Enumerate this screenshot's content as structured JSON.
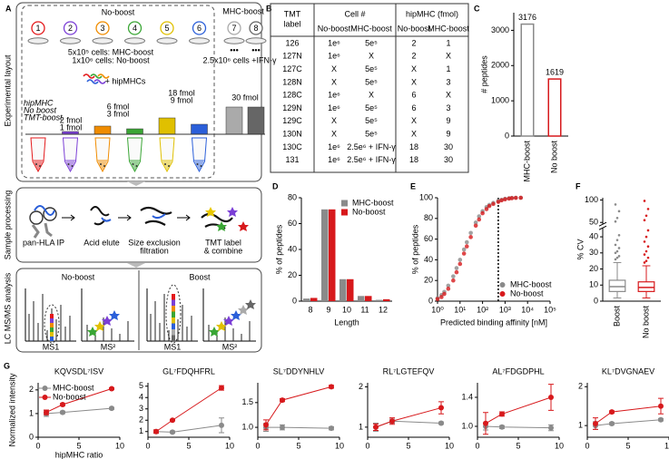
{
  "panel_labels": [
    "A",
    "B",
    "C",
    "D",
    "E",
    "F",
    "G"
  ],
  "layout": {
    "section_labels": [
      "Experimental layout",
      "Sample processing",
      "LC MS/MS analysis"
    ],
    "no_boost": "No-boost",
    "mhc_boost": "MHC-boost",
    "channels": [
      "1",
      "2",
      "3",
      "4",
      "5",
      "6",
      "7",
      "8"
    ],
    "cells_note": [
      "5x10⁵ cells: MHC-boost",
      "1x10⁶ cells: No-boost"
    ],
    "hipmhc_add": "+ hipMHCs",
    "dots": "•••",
    "ifn_note": "2.5x10⁶ cells +IFN-γ",
    "legend_lines": [
      "hipMHC",
      "No boost",
      "TMT-boost"
    ],
    "amounts": [
      "2 fmol",
      "1 fmol",
      "6 fmol",
      "3 fmol",
      "18 fmol",
      "9 fmol",
      "30 fmol"
    ],
    "steps": [
      [
        "pan-HLA IP"
      ],
      [
        "Acid elute"
      ],
      [
        "Size exclusion",
        "filtration"
      ],
      [
        "TMT label",
        "& combine"
      ]
    ],
    "ms_panels": [
      {
        "title": "No-boost",
        "ms1": "MS1",
        "ms2": "MS²"
      },
      {
        "title": "Boost",
        "ms1": "MS1",
        "ms2": "MS²"
      }
    ]
  },
  "table": {
    "header": [
      [
        "TMT",
        "label"
      ],
      [
        "Cell #"
      ],
      [
        "hipMHC (fmol)"
      ]
    ],
    "subheader": [
      "No-boost",
      "MHC-boost",
      "No-boost",
      "MHC-boost"
    ],
    "rows": [
      [
        "126",
        "1e⁶",
        "5e⁵",
        "2",
        "1"
      ],
      [
        "127N",
        "1e⁶",
        "X",
        "2",
        "X"
      ],
      [
        "127C",
        "X",
        "5e⁵",
        "X",
        "1"
      ],
      [
        "128N",
        "X",
        "5e⁵",
        "X",
        "3"
      ],
      [
        "128C",
        "1e⁶",
        "X",
        "6",
        "X"
      ],
      [
        "129N",
        "1e⁶",
        "5e⁵",
        "6",
        "3"
      ],
      [
        "129C",
        "X",
        "5e⁵",
        "X",
        "9"
      ],
      [
        "130N",
        "X",
        "5e⁵",
        "X",
        "9"
      ],
      [
        "130C",
        "1e⁶",
        "2.5e⁶ + IFN-γ",
        "18",
        "30"
      ],
      [
        "131",
        "1e⁶",
        "2.5e⁶ + IFN-γ",
        "18",
        "30"
      ]
    ]
  },
  "chart_data": [
    {
      "type": "bar",
      "ylabel": "# peptides",
      "categories": [
        "MHC-boost",
        "No boost"
      ],
      "values": [
        3176,
        1619
      ],
      "colors": [
        "#8a8a8a",
        "#d7191c"
      ],
      "ylim": [
        0,
        3500
      ],
      "yticks": [
        0,
        1000,
        2000,
        3000
      ],
      "xtick_rotation": 90
    },
    {
      "type": "bar",
      "ylabel": "% of peptides",
      "xlabel": "Length",
      "categories": [
        "8",
        "9",
        "10",
        "11",
        "12"
      ],
      "series": [
        {
          "name": "MHC-boost",
          "color": "#8a8a8a",
          "values": [
            2,
            71,
            17,
            4,
            1
          ]
        },
        {
          "name": "No-boost",
          "color": "#d7191c",
          "values": [
            2.5,
            71,
            17,
            4,
            1.5
          ]
        }
      ],
      "ylim": [
        0,
        80
      ],
      "yticks": [
        0,
        20,
        40,
        60,
        80
      ],
      "legend": "top-right"
    },
    {
      "type": "scatter",
      "ylabel": "% of peptides",
      "xlabel": "Predicted binding affinity [nM]",
      "xscale": "log",
      "x": [
        1,
        1.5,
        2,
        3,
        5,
        7,
        10,
        15,
        20,
        30,
        50,
        70,
        100,
        150,
        200,
        300,
        500,
        700,
        1000,
        1500,
        2000,
        3000,
        5000
      ],
      "series": [
        {
          "name": "MHC-boost",
          "color": "#8a8a8a",
          "values": [
            3,
            6,
            9,
            15,
            24,
            32,
            40,
            50,
            57,
            66,
            76,
            82,
            87,
            91,
            93,
            95,
            97,
            98,
            99,
            99.5,
            99.8,
            100,
            100
          ]
        },
        {
          "name": "No-boost",
          "color": "#d7191c",
          "values": [
            2,
            4,
            7,
            12,
            20,
            28,
            36,
            46,
            53,
            62,
            73,
            79,
            85,
            89,
            92,
            94,
            96,
            97.5,
            98.5,
            99.2,
            99.6,
            99.9,
            100
          ]
        }
      ],
      "xlim": [
        1,
        100000
      ],
      "xticks": [
        {
          "value": 1,
          "label": "10⁰"
        },
        {
          "value": 10,
          "label": "10¹"
        },
        {
          "value": 100,
          "label": "10²"
        },
        {
          "value": 1000,
          "label": "10³"
        },
        {
          "value": 10000,
          "label": "10⁴"
        },
        {
          "value": 100000,
          "label": "10⁵"
        }
      ],
      "ylim": [
        0,
        100
      ],
      "yticks": [
        0,
        20,
        40,
        60,
        80,
        100
      ],
      "threshold": 500,
      "legend": "bottom-right"
    },
    {
      "type": "box",
      "ylabel": "% CV",
      "categories": [
        "Boost",
        "No boost"
      ],
      "colors": [
        "#8a8a8a",
        "#d7191c"
      ],
      "whisker_low": [
        2,
        2
      ],
      "q1": [
        6,
        6
      ],
      "median": [
        9,
        8.5
      ],
      "q3": [
        13,
        12
      ],
      "whisker_high": [
        24,
        22
      ],
      "outliers": [
        [
          26,
          27,
          28,
          30,
          31,
          33,
          35,
          38,
          41,
          52,
          60,
          75,
          90
        ],
        [
          24,
          25,
          27,
          29,
          31,
          34,
          37,
          40,
          44,
          55,
          65,
          80,
          98
        ]
      ],
      "ylim": [
        0,
        105
      ],
      "axis_break": [
        45,
        48
      ],
      "yticks": [
        0,
        10,
        20,
        30,
        40,
        50,
        100
      ],
      "xtick_rotation": 90
    },
    {
      "type": "line",
      "title": "KQVSDL⁷ISV",
      "ylabel": "Normalized intensity",
      "xlabel": "hipMHC ratio",
      "x": [
        1,
        3,
        9
      ],
      "series": [
        {
          "name": "MHC-boost",
          "color": "#8a8a8a",
          "values": [
            1.0,
            1.05,
            1.22
          ],
          "errors": [
            0.12,
            0.05,
            0.04
          ]
        },
        {
          "name": "No-boost",
          "color": "#d7191c",
          "values": [
            1.05,
            1.38,
            2.05
          ],
          "errors": [
            0.1,
            0.05,
            0.04
          ]
        }
      ],
      "xlim": [
        0,
        10
      ],
      "xticks": [
        0,
        5,
        10
      ],
      "ylim": [
        0,
        2.3
      ],
      "yticks": [
        0,
        1,
        2
      ],
      "legend": "top-left"
    },
    {
      "type": "line",
      "title": "GL⁷FDQHFRL",
      "x": [
        1,
        3,
        9
      ],
      "series": [
        {
          "name": "MHC-boost",
          "color": "#8a8a8a",
          "values": [
            1.0,
            0.95,
            1.55
          ],
          "errors": [
            0.15,
            0.1,
            0.65
          ]
        },
        {
          "name": "No-boost",
          "color": "#d7191c",
          "values": [
            1.0,
            2.0,
            4.85
          ],
          "errors": [
            0.15,
            0.05,
            0.2
          ]
        }
      ],
      "xlim": [
        0,
        10
      ],
      "xticks": [
        0,
        5,
        10
      ],
      "ylim": [
        0.5,
        5.3
      ],
      "yticks": [
        1,
        2,
        3,
        4,
        5
      ]
    },
    {
      "type": "line",
      "title": "SL⁷DDYNHLV",
      "x": [
        1,
        3,
        9
      ],
      "series": [
        {
          "name": "MHC-boost",
          "color": "#8a8a8a",
          "values": [
            1.0,
            1.0,
            0.98
          ],
          "errors": [
            0.08,
            0.05,
            0.03
          ]
        },
        {
          "name": "No-boost",
          "color": "#d7191c",
          "values": [
            1.05,
            1.55,
            1.82
          ],
          "errors": [
            0.1,
            0.03,
            0.03
          ]
        }
      ],
      "xlim": [
        0,
        10
      ],
      "xticks": [
        0,
        5,
        10
      ],
      "ylim": [
        0.8,
        1.9
      ],
      "yticks": [
        {
          "value": 1,
          "label": "1.0"
        },
        {
          "value": 1.5,
          "label": "1.5"
        }
      ]
    },
    {
      "type": "line",
      "title": "RL⁷LGTEFQV",
      "x": [
        1,
        3,
        9
      ],
      "series": [
        {
          "name": "MHC-boost",
          "color": "#8a8a8a",
          "values": [
            1.0,
            1.15,
            1.1
          ],
          "errors": [
            0.1,
            0.05,
            0.03
          ]
        },
        {
          "name": "No-boost",
          "color": "#d7191c",
          "values": [
            1.0,
            1.15,
            1.48
          ],
          "errors": [
            0.08,
            0.08,
            0.15
          ]
        }
      ],
      "xlim": [
        0,
        10
      ],
      "xticks": [
        0,
        5,
        10
      ],
      "ylim": [
        0.75,
        2.1
      ],
      "yticks": [
        1,
        2
      ]
    },
    {
      "type": "line",
      "title": "AL⁷FDGDPHL",
      "x": [
        1,
        3,
        9
      ],
      "series": [
        {
          "name": "MHC-boost",
          "color": "#8a8a8a",
          "values": [
            1.0,
            0.99,
            0.98
          ],
          "errors": [
            0.05,
            0.02,
            0.04
          ]
        },
        {
          "name": "No-boost",
          "color": "#d7191c",
          "values": [
            1.04,
            1.17,
            1.4
          ],
          "errors": [
            0.15,
            0.03,
            0.18
          ]
        }
      ],
      "xlim": [
        0,
        10
      ],
      "xticks": [
        0,
        5,
        10
      ],
      "ylim": [
        0.85,
        1.6
      ],
      "yticks": [
        {
          "value": 1,
          "label": "1.0"
        },
        {
          "value": 1.4,
          "label": "1.4"
        }
      ]
    },
    {
      "type": "line",
      "title": "KL⁷DVGNAEV",
      "x": [
        1,
        3,
        9
      ],
      "series": [
        {
          "name": "MHC-boost",
          "color": "#8a8a8a",
          "values": [
            1.0,
            1.05,
            1.15
          ],
          "errors": [
            0.1,
            0.03,
            0.03
          ]
        },
        {
          "name": "No-boost",
          "color": "#d7191c",
          "values": [
            1.05,
            1.35,
            1.5
          ],
          "errors": [
            0.15,
            0.03,
            0.2
          ]
        }
      ],
      "xlim": [
        0,
        10
      ],
      "xticks": [
        0,
        5,
        10
      ],
      "ylim": [
        0.7,
        2.1
      ],
      "yticks": [
        1,
        2
      ]
    }
  ]
}
